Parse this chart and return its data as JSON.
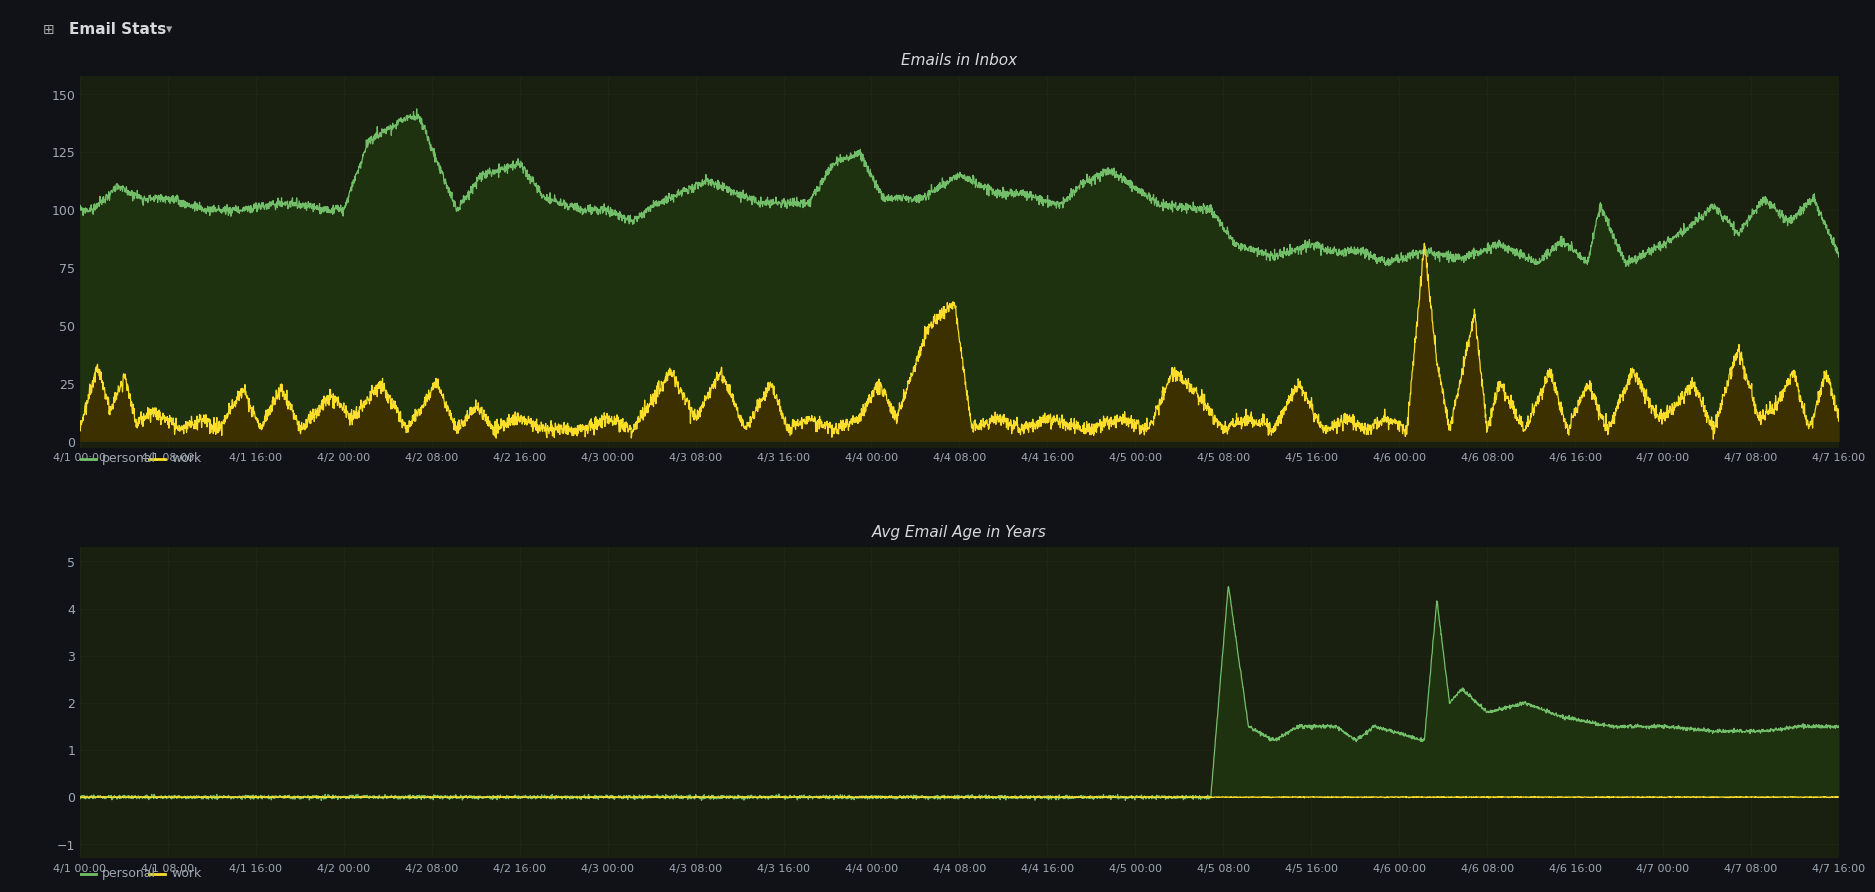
{
  "bg_color": "#111217",
  "panel_title_bg": "#1a1c21",
  "plot_bg": "#111217",
  "chart_bg": "#1a2010",
  "grid_color": "#333333",
  "title1": "Emails in Inbox",
  "title2": "Avg Email Age in Years",
  "personal_color": "#73bf69",
  "work_color": "#fade2a",
  "personal_fill": "#1e3210",
  "work_fill": "#3d3000",
  "x_labels": [
    "4/1 00:00",
    "4/1 08:00",
    "4/1 16:00",
    "4/2 00:00",
    "4/2 08:00",
    "4/2 16:00",
    "4/3 00:00",
    "4/3 08:00",
    "4/3 16:00",
    "4/4 00:00",
    "4/4 08:00",
    "4/4 16:00",
    "4/5 00:00",
    "4/5 08:00",
    "4/5 16:00",
    "4/6 00:00",
    "4/6 08:00",
    "4/6 16:00",
    "4/7 00:00",
    "4/7 08:00",
    "4/7 16:00"
  ],
  "ylim1": [
    -3,
    158
  ],
  "yticks1": [
    0,
    25,
    50,
    75,
    100,
    125,
    150
  ],
  "ylim2": [
    -1.3,
    5.3
  ],
  "yticks2": [
    -1,
    0,
    1,
    2,
    3,
    4,
    5
  ],
  "text_color": "#9fa7b3",
  "title_color": "#d8d9da",
  "grid_alpha": 0.4,
  "header_bg": "#161719"
}
